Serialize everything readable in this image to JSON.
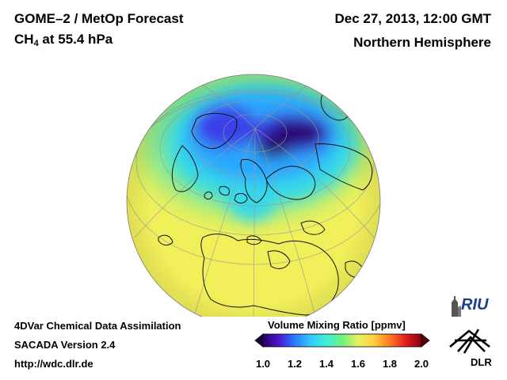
{
  "header": {
    "title": "GOME–2 / MetOp Forecast",
    "species_prefix": "CH",
    "species_subscript": "4",
    "species_suffix": " at 55.4 hPa",
    "date": "Dec 27, 2013, 12:00 GMT",
    "region": "Northern Hemisphere"
  },
  "footer": {
    "line1": "4DVar Chemical Data Assimilation",
    "line2": "SACADA Version 2.4",
    "line3": "http://wdc.dlr.de"
  },
  "colorbar": {
    "title": "Volume Mixing Ratio [ppmv]",
    "min": 1.0,
    "max": 2.0,
    "tick_labels": [
      "1.0",
      "1.2",
      "1.4",
      "1.6",
      "1.8",
      "2.0"
    ],
    "colors": [
      "#2a0060",
      "#4a18d0",
      "#2a7aff",
      "#35c8ff",
      "#40f0d8",
      "#70f080",
      "#e8f060",
      "#ffd040",
      "#ff7a20",
      "#e02020",
      "#8a0010"
    ]
  },
  "logos": {
    "riu": "RIU",
    "dlr": "DLR"
  }
}
